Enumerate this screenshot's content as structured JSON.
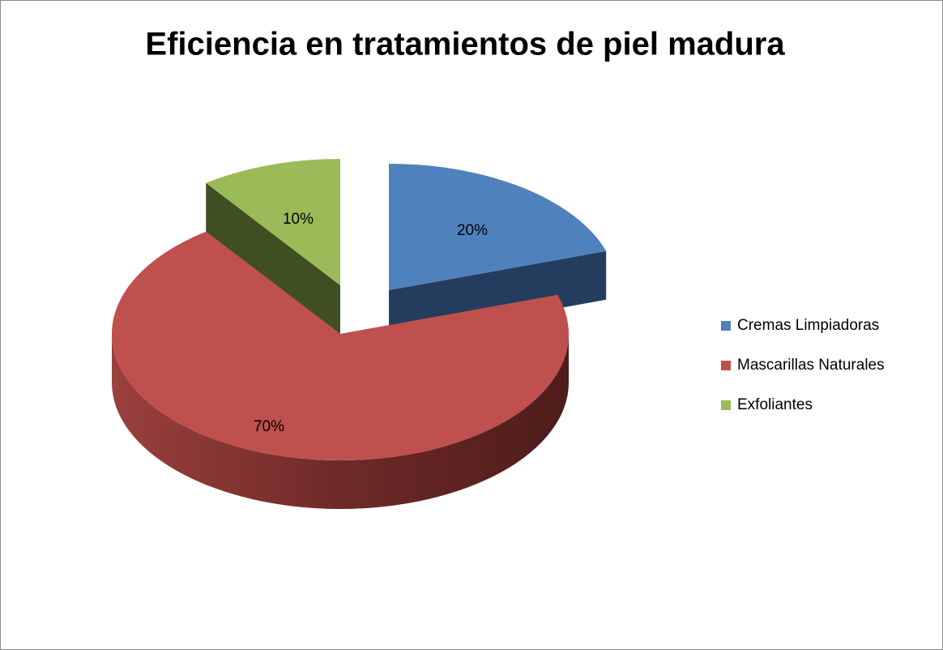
{
  "chart_data": {
    "type": "pie",
    "title": "Eficiencia en tratamientos de piel madura",
    "categories": [
      "Cremas Limpiadoras",
      "Mascarillas Naturales",
      "Exfoliantes"
    ],
    "values": [
      20,
      70,
      10
    ],
    "value_labels": [
      "20%",
      "70%",
      "10%"
    ],
    "colors": [
      "#4f81bd",
      "#c0504d",
      "#9bbb59"
    ],
    "legend": "right"
  }
}
